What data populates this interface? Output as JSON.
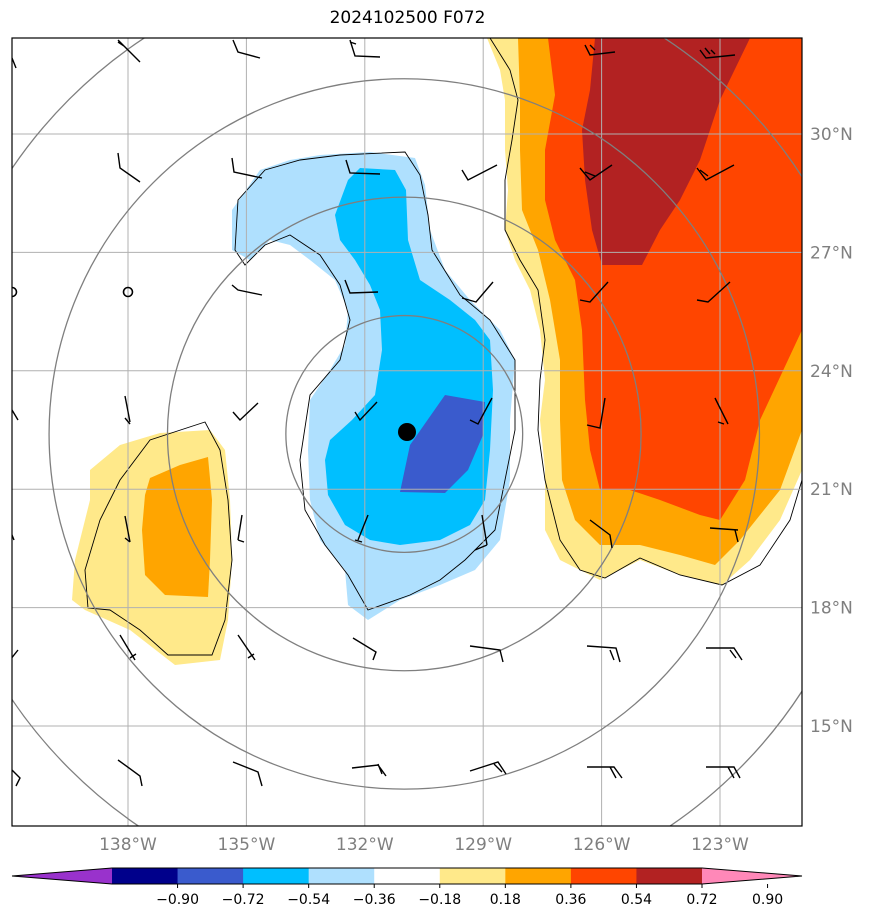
{
  "title": "2024102500 F072",
  "map": {
    "lon_range": [
      -141,
      -121
    ],
    "lat_range": [
      12.5,
      32.5
    ],
    "gridlines": true,
    "lat_ticks": [
      {
        "value": 15,
        "label": "15°N"
      },
      {
        "value": 18,
        "label": "18°N"
      },
      {
        "value": 21,
        "label": "21°N"
      },
      {
        "value": 24,
        "label": "24°N"
      },
      {
        "value": 27,
        "label": "27°N"
      },
      {
        "value": 30,
        "label": "30°N"
      }
    ],
    "lon_ticks": [
      {
        "value": -138,
        "label": "138°W"
      },
      {
        "value": -135,
        "label": "135°W"
      },
      {
        "value": -132,
        "label": "132°W"
      },
      {
        "value": -129,
        "label": "129°W"
      },
      {
        "value": -126,
        "label": "126°W"
      },
      {
        "value": -123,
        "label": "123°W"
      }
    ],
    "storm_center": {
      "lon": -131.0,
      "lat": 22.4
    },
    "range_rings_center": {
      "lon": -131.0,
      "lat": 22.4
    },
    "range_rings_deg": [
      3,
      6,
      9,
      12
    ],
    "secondary_marker": {
      "lon": -138.0,
      "lat": 26.0
    },
    "colors": {
      "gridline": "#b0b0b0",
      "ring": "#7f7f7f",
      "coast_like_contour": "#000000"
    }
  },
  "colorbar": {
    "levels": [
      "-0.90",
      "-0.72",
      "-0.54",
      "-0.36",
      "-0.18",
      "0.18",
      "0.36",
      "0.54",
      "0.72",
      "0.90"
    ],
    "colors": [
      "#9932cc",
      "#00008b",
      "#3a5bcd",
      "#00bfff",
      "#afe0fe",
      "#ffffff",
      "#ffe98a",
      "#ffa500",
      "#ff4500",
      "#b22222",
      "#ff88b8"
    ],
    "extend": "both"
  },
  "fill_colors": {
    "pos_1": "#ffe98a",
    "pos_2": "#ffa500",
    "pos_3": "#ff4500",
    "pos_4": "#b22222",
    "neg_1": "#afe0fe",
    "neg_2": "#00bfff",
    "neg_3": "#3a5bcd"
  }
}
